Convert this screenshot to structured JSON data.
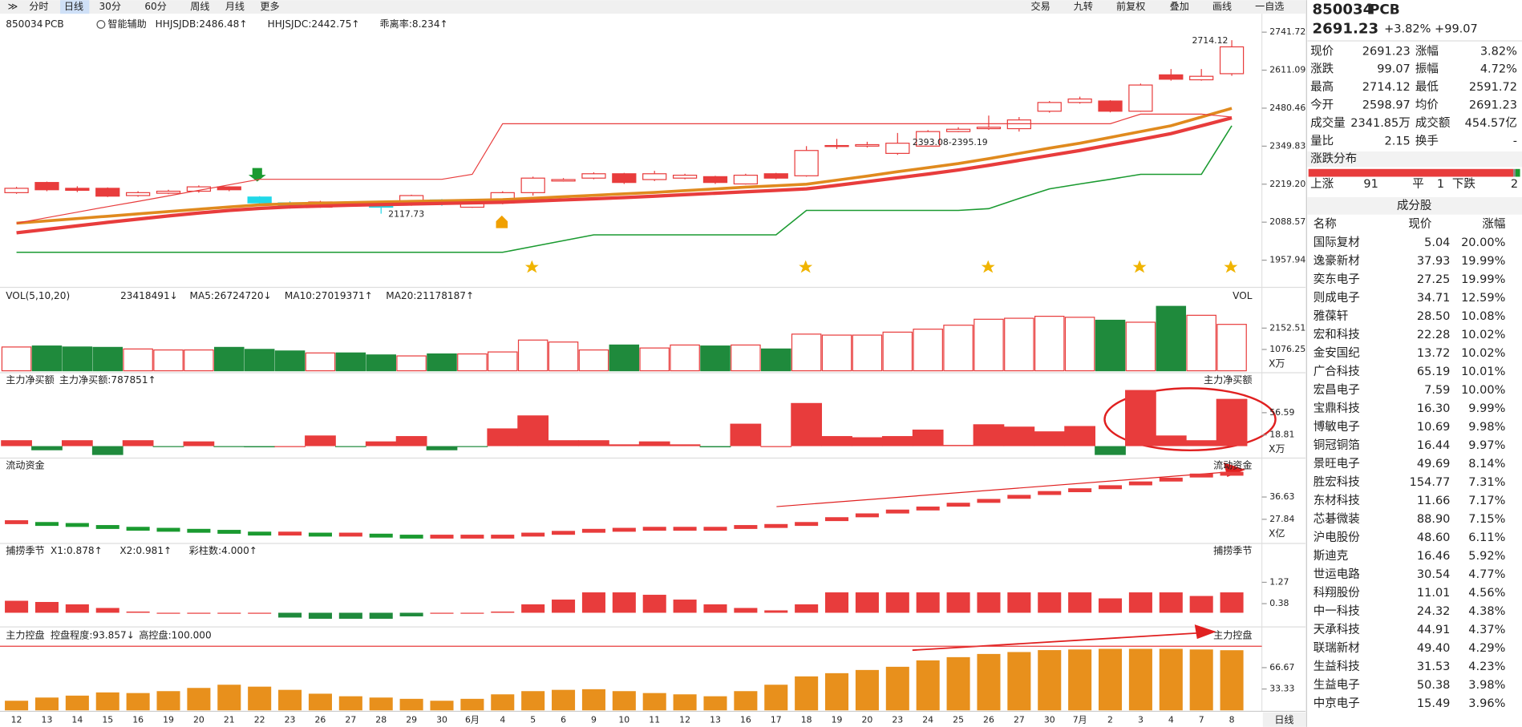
{
  "toolbar": {
    "left": [
      "分时",
      "日线",
      "30分",
      "60分",
      "周线",
      "月线",
      "更多"
    ],
    "right": [
      "交易",
      "九转",
      "前复权",
      "叠加",
      "画线",
      "一自选"
    ]
  },
  "dates": [
    "12",
    "13",
    "14",
    "15",
    "16",
    "19",
    "20",
    "21",
    "22",
    "23",
    "26",
    "27",
    "28",
    "29",
    "30",
    "6月",
    "4",
    "5",
    "6",
    "9",
    "10",
    "11",
    "12",
    "13",
    "16",
    "17",
    "18",
    "19",
    "20",
    "23",
    "24",
    "25",
    "26",
    "27",
    "30",
    "7月",
    "2",
    "3",
    "4",
    "7",
    "8"
  ],
  "footer": "日线",
  "price": {
    "code": "850034",
    "name": "PCB",
    "assist": "智能辅助",
    "indicators": [
      {
        "label": "HHJSJDB:2486.48↑",
        "color": "#e08a1e"
      },
      {
        "label": "HHJSJDC:2442.75↑",
        "color": "#e83c3c"
      },
      {
        "label": "乖离率:8.234↑",
        "color": "#e08a1e"
      }
    ],
    "ylim": [
      1957.94,
      2741.72
    ],
    "yticks": [
      2741.72,
      2611.09,
      2480.46,
      2349.83,
      {
        "value": 2219.2,
        "label": "2219.20"
      },
      2088.57,
      1957.94
    ],
    "candles": {
      "open": [
        2190,
        2225,
        2205,
        2205,
        2180,
        2188,
        2195,
        2210,
        2175,
        2155,
        2140,
        2155,
        2148,
        2150,
        2165,
        2140,
        2155,
        2190,
        2230,
        2240,
        2255,
        2235,
        2240,
        2245,
        2220,
        2255,
        2248,
        2350,
        2350,
        2325,
        2350,
        2400,
        2410,
        2410,
        2470,
        2500,
        2505,
        2470,
        2595,
        2578,
        2598.97
      ],
      "close": [
        2205,
        2200,
        2198,
        2178,
        2190,
        2195,
        2210,
        2200,
        2155,
        2140,
        2158,
        2145,
        2140,
        2180,
        2150,
        2155,
        2190,
        2240,
        2235,
        2255,
        2225,
        2255,
        2250,
        2225,
        2250,
        2240,
        2335,
        2352,
        2355,
        2360,
        2400,
        2408,
        2415,
        2440,
        2500,
        2512,
        2470,
        2560,
        2580,
        2590,
        2691.23
      ],
      "high": [
        2210,
        2228,
        2212,
        2208,
        2195,
        2200,
        2215,
        2212,
        2178,
        2160,
        2162,
        2158,
        2152,
        2183,
        2168,
        2158,
        2195,
        2245,
        2240,
        2260,
        2258,
        2265,
        2255,
        2248,
        2255,
        2258,
        2350,
        2375,
        2365,
        2395.19,
        2405,
        2415,
        2455,
        2450,
        2505,
        2520,
        2508,
        2565,
        2615,
        2615,
        2714.12
      ],
      "low": [
        2186,
        2195,
        2192,
        2175,
        2176,
        2185,
        2190,
        2195,
        2150,
        2135,
        2138,
        2142,
        2117.73,
        2145,
        2145,
        2138,
        2150,
        2180,
        2228,
        2236,
        2220,
        2230,
        2236,
        2220,
        2218,
        2236,
        2245,
        2340,
        2345,
        2320,
        2348,
        2398,
        2406,
        2400,
        2465,
        2496,
        2466,
        2468,
        2575,
        2575,
        2591.72
      ]
    },
    "lines": [
      {
        "color": "#e08a1e",
        "width": 3,
        "values": [
          2085,
          2093,
          2101,
          2109,
          2117,
          2125,
          2133,
          2141,
          2148,
          2152,
          2154,
          2156,
          2158,
          2160,
          2162,
          2164,
          2166,
          2171,
          2176,
          2181,
          2186,
          2191,
          2197,
          2203,
          2209,
          2214,
          2219,
          2233,
          2247,
          2262,
          2276,
          2290,
          2307,
          2325,
          2343,
          2360,
          2380,
          2400,
          2420,
          2450,
          2480
        ]
      },
      {
        "color": "#e83c3c",
        "width": 3.5,
        "values": [
          2052,
          2064,
          2076,
          2088,
          2099,
          2110,
          2120,
          2129,
          2136,
          2141,
          2144,
          2147,
          2149,
          2151,
          2153,
          2155,
          2157,
          2161,
          2165,
          2169,
          2173,
          2178,
          2183,
          2188,
          2193,
          2198,
          2203,
          2215,
          2228,
          2241,
          2254,
          2268,
          2284,
          2301,
          2318,
          2335,
          2354,
          2373,
          2393,
          2420,
          2447
        ]
      },
      {
        "color": "#1a9a30",
        "width": 1.3,
        "values": [
          1985,
          1985,
          1985,
          1985,
          1985,
          1985,
          1985,
          1985,
          1985,
          1985,
          1985,
          1985,
          1985,
          1985,
          1985,
          1985,
          1985,
          2005,
          2025,
          2045,
          2045,
          2045,
          2045,
          2045,
          2045,
          2045,
          2129,
          2129,
          2129,
          2129,
          2129,
          2129,
          2135,
          2170,
          2203,
          2220,
          2236,
          2253,
          2253,
          2253,
          2420
        ]
      },
      {
        "color": "#e83c3c",
        "width": 1,
        "values": [
          2085,
          2104,
          2123,
          2142,
          2160,
          2179,
          2198,
          2217,
          2236,
          2236,
          2236,
          2236,
          2236,
          2236,
          2236,
          2253,
          2427,
          2427,
          2427,
          2427,
          2427,
          2427,
          2427,
          2427,
          2427,
          2427,
          2427,
          2427,
          2427,
          2427,
          2427,
          2427,
          2427,
          2427,
          2427,
          2427,
          2427,
          2460,
          2460,
          2460,
          2450
        ]
      }
    ],
    "annotations": [
      "2714.12",
      "2393.08-2395.19",
      "2117.73"
    ]
  },
  "vol": {
    "title": "VOL(5,10,20)",
    "stats": [
      {
        "label": "23418491↓",
        "color": "#222"
      },
      {
        "label": "MA5:26724720↓",
        "color": "#e08a1e"
      },
      {
        "label": "MA10:27019371↑",
        "color": "#d030d0"
      },
      {
        "label": "MA20:21178187↑",
        "color": "#1a9a30"
      }
    ],
    "side": "VOL",
    "unit": "X万",
    "ylim": [
      0,
      3280
    ],
    "yticks": [
      2152.51,
      1076.25
    ],
    "values": [
      1200,
      1250,
      1200,
      1180,
      1100,
      1050,
      1050,
      1180,
      1080,
      1000,
      900,
      900,
      800,
      750,
      850,
      850,
      950,
      1550,
      1450,
      1050,
      1300,
      1150,
      1300,
      1250,
      1300,
      1100,
      1850,
      1800,
      1800,
      1950,
      2100,
      2300,
      2600,
      2650,
      2750,
      2700,
      2550,
      2450,
      3250,
      2800,
      2341.85
    ]
  },
  "net": {
    "title": "主力净买额",
    "stats": [
      {
        "label": "主力净买额:787851↑",
        "color": "#e83c3c"
      }
    ],
    "side": "主力净买额",
    "unit": "X万",
    "ylim": [
      -17,
      98
    ],
    "yticks": [
      56.59,
      18.81
    ],
    "values": [
      10,
      -7,
      10,
      -15,
      10,
      -1,
      8,
      -1,
      -2,
      0,
      18,
      -1,
      8,
      17,
      -7,
      -1,
      30,
      52,
      10,
      10,
      3,
      8,
      3,
      -2,
      38,
      0,
      73,
      17,
      15,
      17,
      28,
      2,
      37,
      33,
      25,
      34,
      -15,
      95,
      18,
      10,
      80
    ]
  },
  "liquid": {
    "title": "流动资金",
    "stats": [],
    "side": "流动资金",
    "unit": "X亿",
    "ylim": [
      18.3,
      47
    ],
    "yticks": [
      36.63,
      27.84
    ],
    "values": [
      26.7,
      26.0,
      25.6,
      24.8,
      24.1,
      23.7,
      23.3,
      22.9,
      22.2,
      22.2,
      21.8,
      21.8,
      21.4,
      21.0,
      21.0,
      21.0,
      21.0,
      21.8,
      22.5,
      23.3,
      23.7,
      24.1,
      24.1,
      24.1,
      24.8,
      25.2,
      26.0,
      27.9,
      29.4,
      30.9,
      32.1,
      33.6,
      35.1,
      36.7,
      38.2,
      39.3,
      40.5,
      42.0,
      43.5,
      45.1,
      45.8
    ]
  },
  "catch": {
    "title": "捕捞季节",
    "stats": [
      {
        "label": "X1:0.878↑",
        "color": "#e08a1e"
      },
      {
        "label": "X2:0.981↑",
        "color": "#d030d0"
      },
      {
        "label": "彩柱数:4.000↑",
        "color": "#1a9a30"
      }
    ],
    "side": "捕捞季节",
    "ylim": [
      -0.55,
      2.08
    ],
    "yticks": [
      1.27,
      0.38
    ],
    "values": [
      0.5,
      0.45,
      0.35,
      0.2,
      0.05,
      0,
      0,
      0,
      0,
      -0.2,
      -0.25,
      -0.25,
      -0.25,
      -0.15,
      0,
      0,
      0.05,
      0.35,
      0.55,
      0.85,
      0.85,
      0.75,
      0.55,
      0.35,
      0.2,
      0.1,
      0.35,
      0.85,
      0.85,
      0.85,
      0.85,
      0.85,
      0.85,
      0.85,
      0.85,
      0.85,
      0.6,
      0.85,
      0.85,
      0.7,
      0.85
    ]
  },
  "control": {
    "title": "主力控盘",
    "stats": [
      {
        "label": "控盘程度:93.857↓",
        "color": "#e08a1e"
      },
      {
        "label": "高控盘:100.000",
        "color": "#e83c3c"
      }
    ],
    "side": "主力控盘",
    "ylim": [
      0,
      109
    ],
    "yticks": [
      66.67,
      33.33
    ],
    "high_line": 100,
    "values": [
      15,
      20,
      23,
      28,
      27,
      30,
      35,
      40,
      37,
      32,
      26,
      22,
      20,
      18,
      15,
      18,
      25,
      30,
      32,
      33,
      30,
      27,
      25,
      22,
      30,
      40,
      53,
      58,
      63,
      68,
      78,
      83,
      88,
      91,
      94,
      95,
      96,
      96,
      96,
      95,
      93.857
    ]
  },
  "quote": {
    "code": "850034",
    "name": "PCB",
    "price": "2691.23",
    "change_pct": "+3.82%",
    "change": "+99.07",
    "rows": [
      {
        "cells": [
          "现价",
          "2691.23",
          "涨幅",
          "3.82%"
        ],
        "colors": [
          "#e83c3c",
          "#e83c3c"
        ]
      },
      {
        "cells": [
          "涨跌",
          "99.07",
          "振幅",
          "4.72%"
        ],
        "colors": [
          "#e83c3c",
          "#222"
        ]
      },
      {
        "cells": [
          "最高",
          "2714.12",
          "最低",
          "2591.72"
        ],
        "colors": [
          "#e83c3c",
          "#1a9a30"
        ]
      },
      {
        "cells": [
          "今开",
          "2598.97",
          "均价",
          "2691.23"
        ],
        "colors": [
          "#e83c3c",
          "#e83c3c"
        ]
      },
      {
        "cells": [
          "成交量",
          "2341.85万",
          "成交额",
          "454.57亿"
        ],
        "colors": [
          "#222",
          "#222"
        ]
      },
      {
        "cells": [
          "量比",
          "2.15",
          "换手",
          "-"
        ],
        "colors": [
          "#222",
          "#222"
        ]
      }
    ]
  },
  "distribution": {
    "title": "涨跌分布",
    "up_label": "上涨",
    "up": 91,
    "flat_label": "平",
    "flat": 1,
    "down_label": "下跌",
    "down": 2
  },
  "components": {
    "title": "成分股",
    "columns": [
      "名称",
      "现价",
      "涨幅"
    ],
    "rows": [
      {
        "name": "国际复材",
        "price": "5.04",
        "change": "20.00%",
        "color": "#222"
      },
      {
        "name": "逸豪新材",
        "price": "37.93",
        "change": "19.99%",
        "color": "#2a6fd6"
      },
      {
        "name": "奕东电子",
        "price": "27.25",
        "change": "19.99%",
        "color": "#222"
      },
      {
        "name": "则成电子",
        "price": "34.71",
        "change": "12.59%",
        "color": "#222"
      },
      {
        "name": "雅葆轩",
        "price": "28.50",
        "change": "10.08%",
        "color": "#222"
      },
      {
        "name": "宏和科技",
        "price": "22.28",
        "change": "10.02%",
        "color": "#222"
      },
      {
        "name": "金安国纪",
        "price": "13.72",
        "change": "10.02%",
        "color": "#2a6fd6"
      },
      {
        "name": "广合科技",
        "price": "65.19",
        "change": "10.01%",
        "color": "#222"
      },
      {
        "name": "宏昌电子",
        "price": "7.59",
        "change": "10.00%",
        "color": "#2a6fd6"
      },
      {
        "name": "宝鼎科技",
        "price": "16.30",
        "change": "9.99%",
        "color": "#2a6fd6"
      },
      {
        "name": "博敏电子",
        "price": "10.69",
        "change": "9.98%",
        "color": "#222"
      },
      {
        "name": "铜冠铜箔",
        "price": "16.44",
        "change": "9.97%",
        "color": "#222"
      },
      {
        "name": "景旺电子",
        "price": "49.69",
        "change": "8.14%",
        "color": "#222"
      },
      {
        "name": "胜宏科技",
        "price": "154.77",
        "change": "7.31%",
        "color": "#2a6fd6"
      },
      {
        "name": "东材科技",
        "price": "11.66",
        "change": "7.17%",
        "color": "#2a6fd6"
      },
      {
        "name": "芯碁微装",
        "price": "88.90",
        "change": "7.15%",
        "color": "#222"
      },
      {
        "name": "沪电股份",
        "price": "48.60",
        "change": "6.11%",
        "color": "#2a6fd6"
      },
      {
        "name": "斯迪克",
        "price": "16.46",
        "change": "5.92%",
        "color": "#222"
      },
      {
        "name": "世运电路",
        "price": "30.54",
        "change": "4.77%",
        "color": "#222"
      },
      {
        "name": "科翔股份",
        "price": "11.01",
        "change": "4.56%",
        "color": "#222"
      },
      {
        "name": "中一科技",
        "price": "24.32",
        "change": "4.38%",
        "color": "#222"
      },
      {
        "name": "天承科技",
        "price": "44.91",
        "change": "4.37%",
        "color": "#222"
      },
      {
        "name": "联瑞新材",
        "price": "49.40",
        "change": "4.29%",
        "color": "#222"
      },
      {
        "name": "生益科技",
        "price": "31.53",
        "change": "4.23%",
        "color": "#2a6fd6"
      },
      {
        "name": "生益电子",
        "price": "50.38",
        "change": "3.98%",
        "color": "#2a6fd6"
      },
      {
        "name": "中京电子",
        "price": "15.49",
        "change": "3.96%",
        "color": "#222"
      }
    ]
  }
}
